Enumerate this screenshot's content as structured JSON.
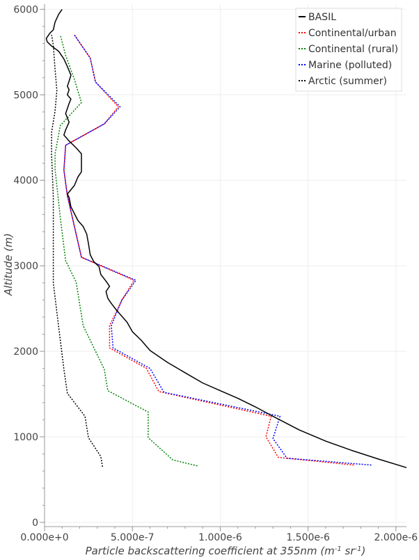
{
  "chart_data": {
    "type": "line",
    "xlabel_parts": [
      "Particle backscattering coefficient at 355nm (m",
      "-1",
      " sr",
      "-1",
      ")"
    ],
    "ylabel_parts": [
      "Altitude (m)"
    ],
    "xlim": [
      0,
      2.06e-06
    ],
    "ylim": [
      -50,
      6060
    ],
    "x_ticks": [
      0,
      5e-07,
      1e-06,
      1.5e-06,
      2e-06
    ],
    "x_tick_labels": [
      "0.000e+0",
      "5.000e-7",
      "1.000e-6",
      "1.500e-6",
      "2.000e-6"
    ],
    "y_ticks": [
      0,
      1000,
      2000,
      3000,
      4000,
      5000,
      6000
    ],
    "y_tick_labels": [
      "0",
      "1000",
      "2000",
      "3000",
      "4000",
      "5000",
      "6000"
    ],
    "grid": true,
    "legend_position": "top-right",
    "series": [
      {
        "name": "BASIL",
        "color": "#000000",
        "style": "solid",
        "points": [
          [
            2.06e-06,
            640
          ],
          [
            1.9e-06,
            740
          ],
          [
            1.75e-06,
            840
          ],
          [
            1.6e-06,
            950
          ],
          [
            1.45e-06,
            1080
          ],
          [
            1.3e-06,
            1240
          ],
          [
            1.2e-06,
            1350
          ],
          [
            1.1e-06,
            1450
          ],
          [
            1e-06,
            1540
          ],
          [
            9e-07,
            1630
          ],
          [
            8e-07,
            1750
          ],
          [
            7e-07,
            1870
          ],
          [
            6e-07,
            2010
          ],
          [
            5.5e-07,
            2130
          ],
          [
            5e-07,
            2230
          ],
          [
            4.7e-07,
            2340
          ],
          [
            4.1e-07,
            2480
          ],
          [
            3.8e-07,
            2560
          ],
          [
            3.6e-07,
            2620
          ],
          [
            3.5e-07,
            2700
          ],
          [
            3.7e-07,
            2760
          ],
          [
            3.5e-07,
            2820
          ],
          [
            3.2e-07,
            2900
          ],
          [
            3.1e-07,
            2990
          ],
          [
            2.8e-07,
            3050
          ],
          [
            2.6e-07,
            3130
          ],
          [
            2.5e-07,
            3260
          ],
          [
            2.4e-07,
            3370
          ],
          [
            2.2e-07,
            3460
          ],
          [
            1.9e-07,
            3530
          ],
          [
            1.7e-07,
            3610
          ],
          [
            1.5e-07,
            3690
          ],
          [
            1.4e-07,
            3800
          ],
          [
            1.3e-07,
            3840
          ],
          [
            1.7e-07,
            3940
          ],
          [
            1.9e-07,
            4040
          ],
          [
            2.1e-07,
            4100
          ],
          [
            2.1e-07,
            4170
          ],
          [
            2.1e-07,
            4260
          ],
          [
            2.1e-07,
            4310
          ],
          [
            1.8e-07,
            4380
          ],
          [
            1.4e-07,
            4460
          ],
          [
            1.1e-07,
            4530
          ],
          [
            1.2e-07,
            4590
          ],
          [
            1.4e-07,
            4680
          ],
          [
            1.2e-07,
            4780
          ],
          [
            1.4e-07,
            4900
          ],
          [
            1.5e-07,
            4950
          ],
          [
            1.3e-07,
            5000
          ],
          [
            1.4e-07,
            5060
          ],
          [
            1.3e-07,
            5100
          ],
          [
            1.4e-07,
            5160
          ],
          [
            1.5e-07,
            5230
          ],
          [
            1.3e-07,
            5330
          ],
          [
            1.1e-07,
            5420
          ],
          [
            8e-08,
            5510
          ],
          [
            4e-08,
            5570
          ],
          [
            1.5e-08,
            5620
          ],
          [
            1e-08,
            5660
          ],
          [
            3e-08,
            5720
          ],
          [
            5e-08,
            5760
          ],
          [
            6e-08,
            5850
          ],
          [
            8e-08,
            5940
          ],
          [
            1e-07,
            6000
          ]
        ]
      },
      {
        "name": "Continental/urban",
        "color": "#ff0000",
        "style": "dotted",
        "points": [
          [
            1.76e-06,
            670
          ],
          [
            1.33e-06,
            760
          ],
          [
            1.26e-06,
            1000
          ],
          [
            1.29e-06,
            1240
          ],
          [
            6.5e-07,
            1530
          ],
          [
            5.8e-07,
            1800
          ],
          [
            3.7e-07,
            2040
          ],
          [
            3.7e-07,
            2300
          ],
          [
            4.4e-07,
            2600
          ],
          [
            5.1e-07,
            2830
          ],
          [
            2.1e-07,
            3100
          ],
          [
            1.3e-07,
            3820
          ],
          [
            1.1e-07,
            4120
          ],
          [
            1.2e-07,
            4410
          ],
          [
            3.4e-07,
            4660
          ],
          [
            4.2e-07,
            4860
          ],
          [
            2.9e-07,
            5150
          ],
          [
            2.6e-07,
            5430
          ],
          [
            1.7e-07,
            5700
          ]
        ]
      },
      {
        "name": "Continental (rural)",
        "color": "#008000",
        "style": "dotted",
        "points": [
          [
            8.7e-07,
            660
          ],
          [
            7.3e-07,
            730
          ],
          [
            5.9e-07,
            990
          ],
          [
            5.9e-07,
            1290
          ],
          [
            3.6e-07,
            1540
          ],
          [
            3.4e-07,
            1790
          ],
          [
            2.2e-07,
            2300
          ],
          [
            1.8e-07,
            2810
          ],
          [
            1.2e-07,
            3060
          ],
          [
            9e-08,
            3560
          ],
          [
            6e-08,
            4130
          ],
          [
            6e-08,
            4310
          ],
          [
            9e-08,
            4640
          ],
          [
            2.1e-07,
            4910
          ],
          [
            1.7e-07,
            5180
          ],
          [
            1.2e-07,
            5460
          ],
          [
            9e-08,
            5700
          ]
        ]
      },
      {
        "name": "Marine (polluted)",
        "color": "#0000ff",
        "style": "dotted",
        "points": [
          [
            1.86e-06,
            670
          ],
          [
            1.38e-06,
            750
          ],
          [
            1.3e-06,
            980
          ],
          [
            1.34e-06,
            1240
          ],
          [
            6.8e-07,
            1520
          ],
          [
            6e-07,
            1800
          ],
          [
            3.9e-07,
            2040
          ],
          [
            3.8e-07,
            2300
          ],
          [
            4.4e-07,
            2600
          ],
          [
            5.2e-07,
            2830
          ],
          [
            2.1e-07,
            3100
          ],
          [
            1.3e-07,
            3820
          ],
          [
            1.1e-07,
            4120
          ],
          [
            1.2e-07,
            4410
          ],
          [
            3.4e-07,
            4660
          ],
          [
            4.3e-07,
            4860
          ],
          [
            2.9e-07,
            5150
          ],
          [
            2.6e-07,
            5430
          ],
          [
            1.7e-07,
            5700
          ]
        ]
      },
      {
        "name": "Arctic (summer)",
        "color": "#000000",
        "style": "dotted",
        "points": [
          [
            3.3e-07,
            650
          ],
          [
            3.2e-07,
            770
          ],
          [
            2.5e-07,
            990
          ],
          [
            2.3e-07,
            1240
          ],
          [
            1.3e-07,
            1510
          ],
          [
            1.1e-07,
            1790
          ],
          [
            8e-08,
            2290
          ],
          [
            5e-08,
            2800
          ],
          [
            5e-08,
            3330
          ],
          [
            5e-08,
            3810
          ],
          [
            4e-08,
            4300
          ],
          [
            4e-08,
            4560
          ],
          [
            6e-08,
            4810
          ],
          [
            7e-08,
            5050
          ],
          [
            6e-08,
            5300
          ],
          [
            5e-08,
            5580
          ],
          [
            4e-08,
            5700
          ]
        ]
      }
    ]
  }
}
